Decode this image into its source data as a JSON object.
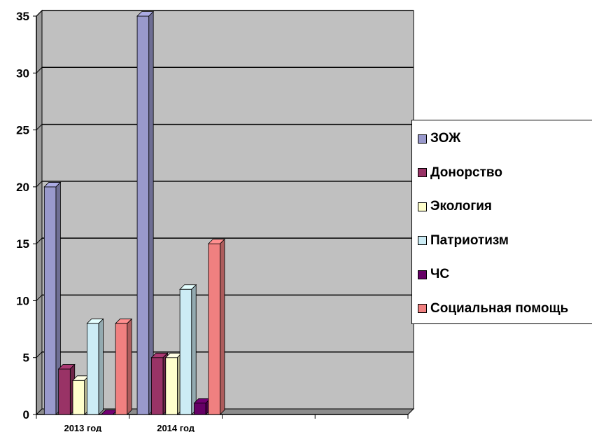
{
  "chart_data": {
    "type": "bar",
    "categories": [
      "2013 год",
      "2014 год",
      "",
      ""
    ],
    "series": [
      {
        "name": "ЗОЖ",
        "values": [
          20,
          35,
          null,
          null
        ],
        "color": "#9999cc"
      },
      {
        "name": "Донорство",
        "values": [
          4,
          5,
          null,
          null
        ],
        "color": "#993366"
      },
      {
        "name": "Экология",
        "values": [
          3,
          5,
          null,
          null
        ],
        "color": "#ffffcc"
      },
      {
        "name": "Патриотизм",
        "values": [
          8,
          11,
          null,
          null
        ],
        "color": "#ccecf5"
      },
      {
        "name": "ЧС",
        "values": [
          0,
          1,
          null,
          null
        ],
        "color": "#660066"
      },
      {
        "name": "Социальная помощь",
        "values": [
          8,
          15,
          null,
          null
        ],
        "color": "#f08080"
      }
    ],
    "y_ticks": [
      "0",
      "5",
      "10",
      "15",
      "20",
      "25",
      "30",
      "35"
    ],
    "ylim": [
      0,
      35
    ],
    "grid": true,
    "legend": "right",
    "plot_background": "#c0c0c0",
    "title": "",
    "xlabel": "",
    "ylabel": ""
  }
}
